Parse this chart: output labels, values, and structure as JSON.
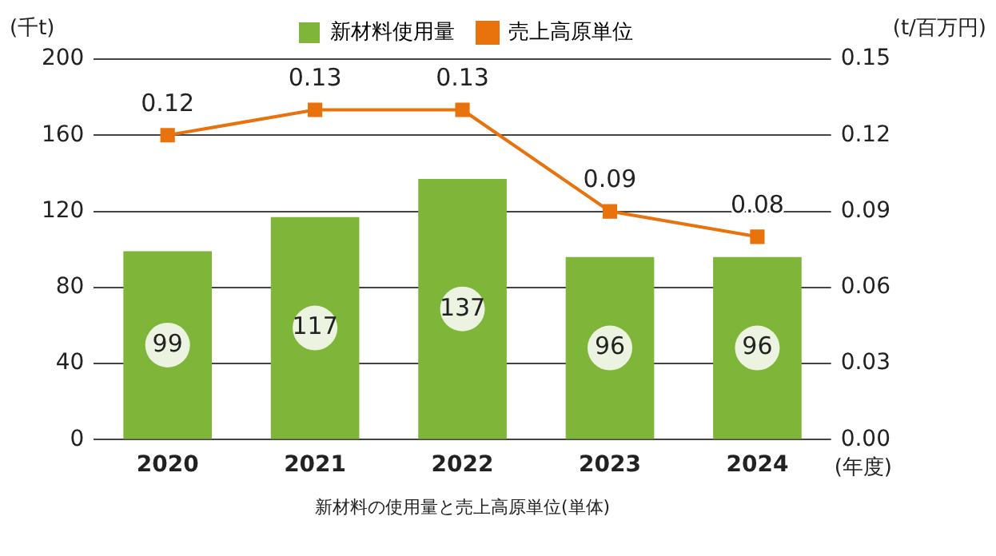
{
  "chart_data": {
    "type": "bar",
    "categories": [
      "2020",
      "2021",
      "2022",
      "2023",
      "2024"
    ],
    "series": [
      {
        "name": "新材料使用量",
        "color": "#7fb539",
        "values": [
          99,
          117,
          137,
          96,
          96
        ]
      },
      {
        "name": "売上高原単位",
        "type": "line",
        "axis": "y2",
        "color": "#e8720c",
        "values": [
          0.12,
          0.13,
          0.13,
          0.09,
          0.08
        ]
      }
    ],
    "ylim": [
      0,
      200
    ],
    "yticks": [
      0,
      40,
      80,
      120,
      160,
      200
    ],
    "y2lim": [
      0,
      0.15
    ],
    "y2ticks": [
      {
        "value": 0,
        "label": "0.00"
      },
      {
        "value": 0.03,
        "label": "0.03"
      },
      {
        "value": 0.06,
        "label": "0.06"
      },
      {
        "value": 0.09,
        "label": "0.09"
      },
      {
        "value": 0.12,
        "label": "0.12"
      },
      {
        "value": 0.15,
        "label": "0.15"
      }
    ],
    "ylabel": "(千t)",
    "y2label": "(t/百万円)",
    "xlabel": "(年度)",
    "annotations": [
      "新材料の使用量と売上高原単位(単体)"
    ],
    "grid": "y",
    "legend": "top",
    "marker": "square",
    "line_style": "solid",
    "data_labels": true
  }
}
